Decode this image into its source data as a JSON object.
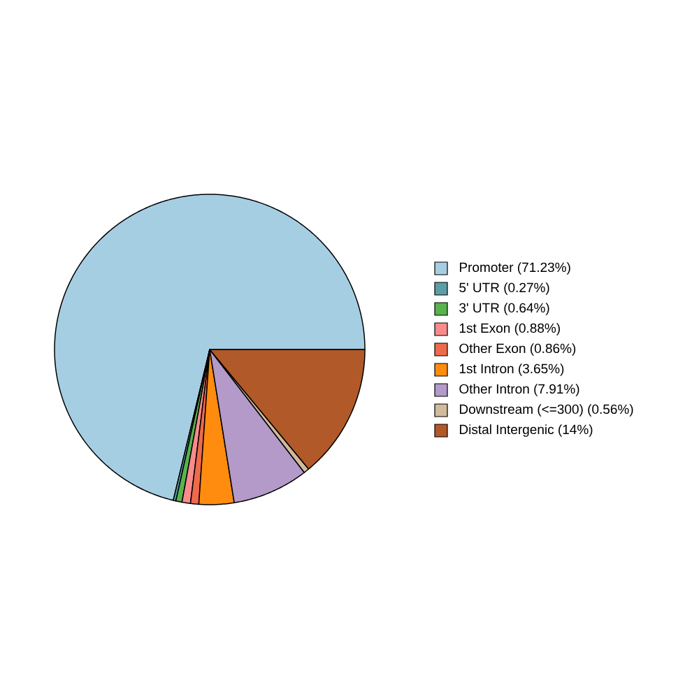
{
  "chart_data": {
    "type": "pie",
    "categories": [
      "Promoter (71.23%)",
      "5' UTR (0.27%)",
      "3' UTR (0.64%)",
      "1st Exon (0.88%)",
      "Other Exon (0.86%)",
      "1st Intron (3.65%)",
      "Other Intron (7.91%)",
      "Downstream (<=300) (0.56%)",
      "Distal Intergenic (14%)"
    ],
    "values": [
      71.23,
      0.27,
      0.64,
      0.88,
      0.86,
      3.65,
      7.91,
      0.56,
      14
    ],
    "colors": [
      "#a6cee3",
      "#5c9ea6",
      "#58b34c",
      "#f98b8b",
      "#ee6a4c",
      "#ff8c0f",
      "#b39ac9",
      "#d0bb9c",
      "#b15928"
    ],
    "legend": "right"
  }
}
